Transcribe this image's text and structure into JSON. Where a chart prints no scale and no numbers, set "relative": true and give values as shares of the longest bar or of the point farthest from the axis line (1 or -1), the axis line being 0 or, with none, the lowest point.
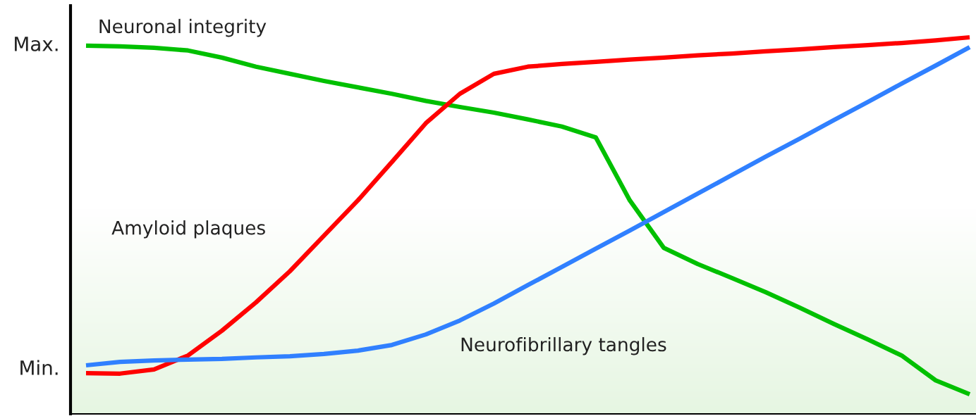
{
  "chart_data": {
    "type": "line",
    "relative": true,
    "categories": [
      null,
      null,
      null,
      null,
      null,
      null,
      null,
      null,
      null,
      null,
      null,
      null,
      null,
      null,
      null,
      null,
      null,
      null,
      null,
      null,
      null,
      null,
      null,
      null,
      null,
      null,
      null
    ],
    "annotations": [
      "Max.",
      "Min."
    ],
    "series": [
      {
        "name": "Neuronal integrity",
        "color": "#00c000",
        "values": [
          0.978,
          0.976,
          0.972,
          0.965,
          0.946,
          0.922,
          0.903,
          0.884,
          0.867,
          0.85,
          0.831,
          0.815,
          0.8,
          0.782,
          0.763,
          0.734,
          0.567,
          0.441,
          0.398,
          0.361,
          0.323,
          0.282,
          0.239,
          0.198,
          0.155,
          0.089,
          0.052
        ]
      },
      {
        "name": "Amyloid plaques",
        "color": "#ff0000",
        "values": [
          0.108,
          0.107,
          0.118,
          0.155,
          0.221,
          0.296,
          0.379,
          0.473,
          0.567,
          0.669,
          0.772,
          0.85,
          0.903,
          0.922,
          0.929,
          0.935,
          0.941,
          0.946,
          0.952,
          0.957,
          0.963,
          0.968,
          0.974,
          0.979,
          0.985,
          0.992,
          1.0
        ]
      },
      {
        "name": "Neurofibrillary tangles",
        "color": "#3080ff",
        "values": [
          0.129,
          0.138,
          0.142,
          0.144,
          0.146,
          0.15,
          0.153,
          0.159,
          0.168,
          0.183,
          0.211,
          0.248,
          0.293,
          0.342,
          0.39,
          0.439,
          0.487,
          0.536,
          0.585,
          0.634,
          0.683,
          0.731,
          0.78,
          0.828,
          0.877,
          0.925,
          0.974
        ]
      }
    ]
  }
}
